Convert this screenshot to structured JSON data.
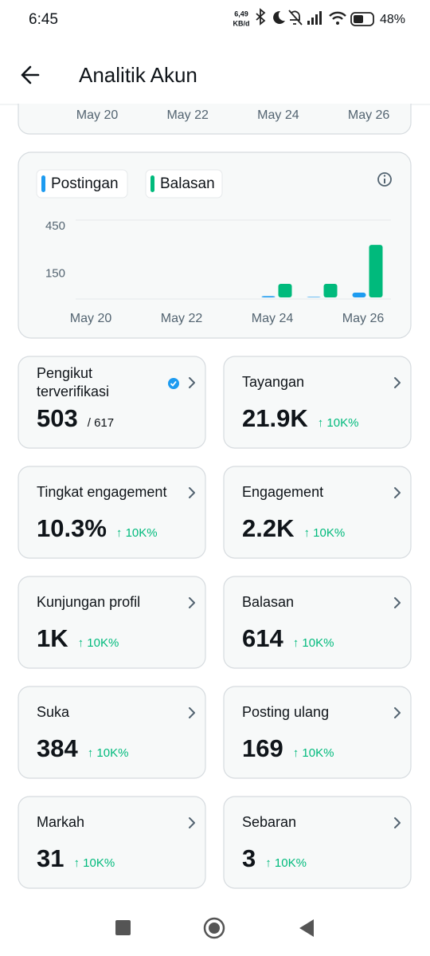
{
  "status_bar": {
    "time": "6:45",
    "speed": "6,49",
    "speed_unit": "KB/d",
    "battery": "48%"
  },
  "header": {
    "title": "Analitik Akun"
  },
  "previous_chart": {
    "x_labels": [
      "May 20",
      "May 22",
      "May 24",
      "May 26"
    ]
  },
  "chart_data": {
    "type": "bar",
    "categories": [
      "May 20",
      null,
      "May 22",
      null,
      "May 24",
      null,
      "May 26"
    ],
    "series": [
      {
        "name": "Postingan",
        "color": "#1d9bf0",
        "values": [
          0,
          0,
          0,
          0,
          8,
          3,
          30
        ]
      },
      {
        "name": "Balasan",
        "color": "#00ba7c",
        "values": [
          0,
          0,
          0,
          0,
          86,
          86,
          333
        ]
      }
    ],
    "ylim": [
      0,
      490
    ],
    "yticks": [
      150,
      450
    ],
    "grid": false
  },
  "cards": [
    {
      "label": [
        "Pengikut",
        "terverifikasi"
      ],
      "value": "503",
      "total": "/ 617"
    },
    {
      "label": "Tayangan",
      "value": "21.9K",
      "change": "↑ 10K%"
    },
    {
      "label": "Tingkat engagement",
      "value": "10.3%",
      "change": "↑ 10K%"
    },
    {
      "label": "Engagement",
      "value": "2.2K",
      "change": "↑ 10K%"
    },
    {
      "label": "Kunjungan profil",
      "value": "1K",
      "change": "↑ 10K%"
    },
    {
      "label": "Balasan",
      "value": "614",
      "change": "↑ 10K%"
    },
    {
      "label": "Suka",
      "value": "384",
      "change": "↑ 10K%"
    },
    {
      "label": "Posting ulang",
      "value": "169",
      "change": "↑ 10K%"
    },
    {
      "label": "Markah",
      "value": "31",
      "change": "↑ 10K%"
    },
    {
      "label": "Sebaran",
      "value": "3",
      "change": "↑ 10K%"
    }
  ]
}
